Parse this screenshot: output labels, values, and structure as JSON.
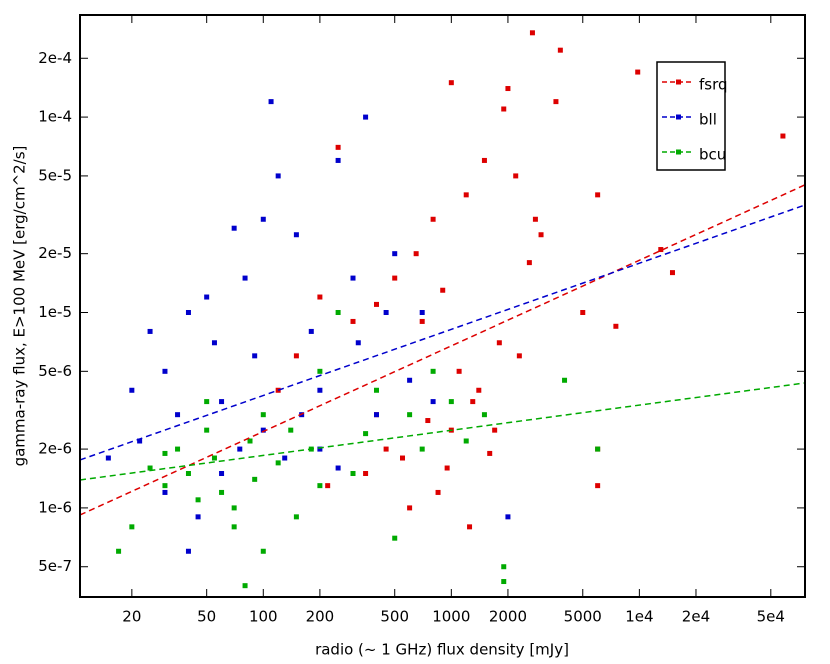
{
  "chart_data": {
    "type": "scatter",
    "x_label": "radio (~ 1 GHz) flux density [mJy]",
    "y_label": "gamma-ray flux, E>100 MeV [erg/cm^2/s]",
    "log_x": true,
    "log_y": true,
    "xlim": [
      10.6,
      76000
    ],
    "ylim": [
      3.5e-07,
      0.000333
    ],
    "xticks": [
      20,
      50,
      100,
      200,
      500,
      1000,
      2000,
      5000,
      {
        "value": 10000,
        "label": "1e4"
      },
      {
        "value": 20000,
        "label": "2e4"
      },
      {
        "value": 50000,
        "label": "5e4"
      }
    ],
    "yticks": [
      {
        "value": 5e-07,
        "label": "5e-7"
      },
      {
        "value": 1e-06,
        "label": "1e-6"
      },
      {
        "value": 2e-06,
        "label": "2e-6"
      },
      {
        "value": 5e-06,
        "label": "5e-6"
      },
      {
        "value": 1e-05,
        "label": "1e-5"
      },
      {
        "value": 2e-05,
        "label": "2e-5"
      },
      {
        "value": 5e-05,
        "label": "5e-5"
      },
      {
        "value": 0.0001,
        "label": "1e-4"
      },
      {
        "value": 0.0002,
        "label": "2e-4"
      }
    ],
    "series": [
      {
        "name": "fsrq",
        "color": "#dd0000",
        "x": [
          2700,
          3800,
          1000,
          2000,
          1900,
          9800,
          58000,
          6000,
          13000,
          15000,
          7500,
          6000,
          6000,
          3600,
          1500,
          1200,
          800,
          650,
          500,
          400,
          300,
          250,
          200,
          150,
          120,
          700,
          900,
          1100,
          1300,
          1700,
          2300,
          2600,
          3000,
          450,
          350,
          600,
          850,
          1000,
          1400,
          1800,
          2200,
          2800,
          5000,
          400,
          550,
          750,
          950,
          1250,
          1600,
          220
        ],
        "values": [
          0.00027,
          0.00022,
          0.00015,
          0.00014,
          0.00011,
          0.00017,
          8e-05,
          4e-05,
          2.1e-05,
          1.6e-05,
          8.5e-06,
          1.3e-06,
          2e-06,
          0.00012,
          6e-05,
          4e-05,
          3e-05,
          2e-05,
          1.5e-05,
          1.1e-05,
          9e-06,
          7e-05,
          1.2e-05,
          6e-06,
          4e-06,
          9e-06,
          1.3e-05,
          5e-06,
          3.5e-06,
          2.5e-06,
          6e-06,
          1.8e-05,
          2.5e-05,
          2e-06,
          1.5e-06,
          1e-06,
          1.2e-06,
          2.5e-06,
          4e-06,
          7e-06,
          5e-05,
          3e-05,
          1e-05,
          3e-06,
          1.8e-06,
          2.8e-06,
          1.6e-06,
          8e-07,
          1.9e-06,
          1.3e-06
        ],
        "fit": {
          "x": [
            10.6,
            76000
          ],
          "y": [
            9.2e-07,
            4.5e-05
          ]
        }
      },
      {
        "name": "bll",
        "color": "#0000cc",
        "x": [
          15,
          20,
          22,
          25,
          30,
          35,
          40,
          45,
          50,
          55,
          60,
          70,
          80,
          90,
          100,
          110,
          120,
          150,
          180,
          200,
          250,
          300,
          350,
          400,
          500,
          700,
          30,
          40,
          60,
          75,
          100,
          130,
          160,
          200,
          250,
          2000,
          320,
          450,
          600,
          800
        ],
        "values": [
          1.8e-06,
          4e-06,
          2.2e-06,
          8e-06,
          5e-06,
          3e-06,
          1e-05,
          9e-07,
          1.2e-05,
          7e-06,
          3.5e-06,
          2.7e-05,
          1.5e-05,
          6e-06,
          3e-05,
          0.00012,
          5e-05,
          2.5e-05,
          8e-06,
          4e-06,
          6e-05,
          1.5e-05,
          0.0001,
          3e-06,
          2e-05,
          1e-05,
          1.2e-06,
          6e-07,
          1.5e-06,
          2e-06,
          2.5e-06,
          1.8e-06,
          3e-06,
          2e-06,
          1.6e-06,
          9e-07,
          7e-06,
          1e-05,
          4.5e-06,
          3.5e-06
        ],
        "fit": {
          "x": [
            10.6,
            76000
          ],
          "y": [
            1.76e-06,
            3.55e-05
          ]
        }
      },
      {
        "name": "bcu",
        "color": "#00aa00",
        "x": [
          17,
          20,
          25,
          30,
          35,
          40,
          45,
          50,
          55,
          60,
          70,
          80,
          85,
          90,
          100,
          120,
          150,
          180,
          200,
          250,
          300,
          350,
          400,
          500,
          600,
          700,
          800,
          1000,
          1200,
          1500,
          1900,
          1900,
          4000,
          6000,
          30,
          50,
          70,
          100,
          140,
          200
        ],
        "values": [
          6e-07,
          8e-07,
          1.6e-06,
          1.3e-06,
          2e-06,
          1.5e-06,
          1.1e-06,
          2.5e-06,
          1.8e-06,
          1.2e-06,
          8e-07,
          4e-07,
          2.2e-06,
          1.4e-06,
          3e-06,
          1.7e-06,
          9e-07,
          2e-06,
          5e-06,
          1e-05,
          1.5e-06,
          2.4e-06,
          4e-06,
          7e-07,
          3e-06,
          2e-06,
          5e-06,
          3.5e-06,
          2.2e-06,
          3e-06,
          5e-07,
          4.2e-07,
          4.5e-06,
          2e-06,
          1.9e-06,
          3.5e-06,
          1e-06,
          6e-07,
          2.5e-06,
          1.3e-06
        ],
        "fit": {
          "x": [
            10.6,
            76000
          ],
          "y": [
            1.39e-06,
            4.36e-06
          ]
        }
      }
    ]
  }
}
